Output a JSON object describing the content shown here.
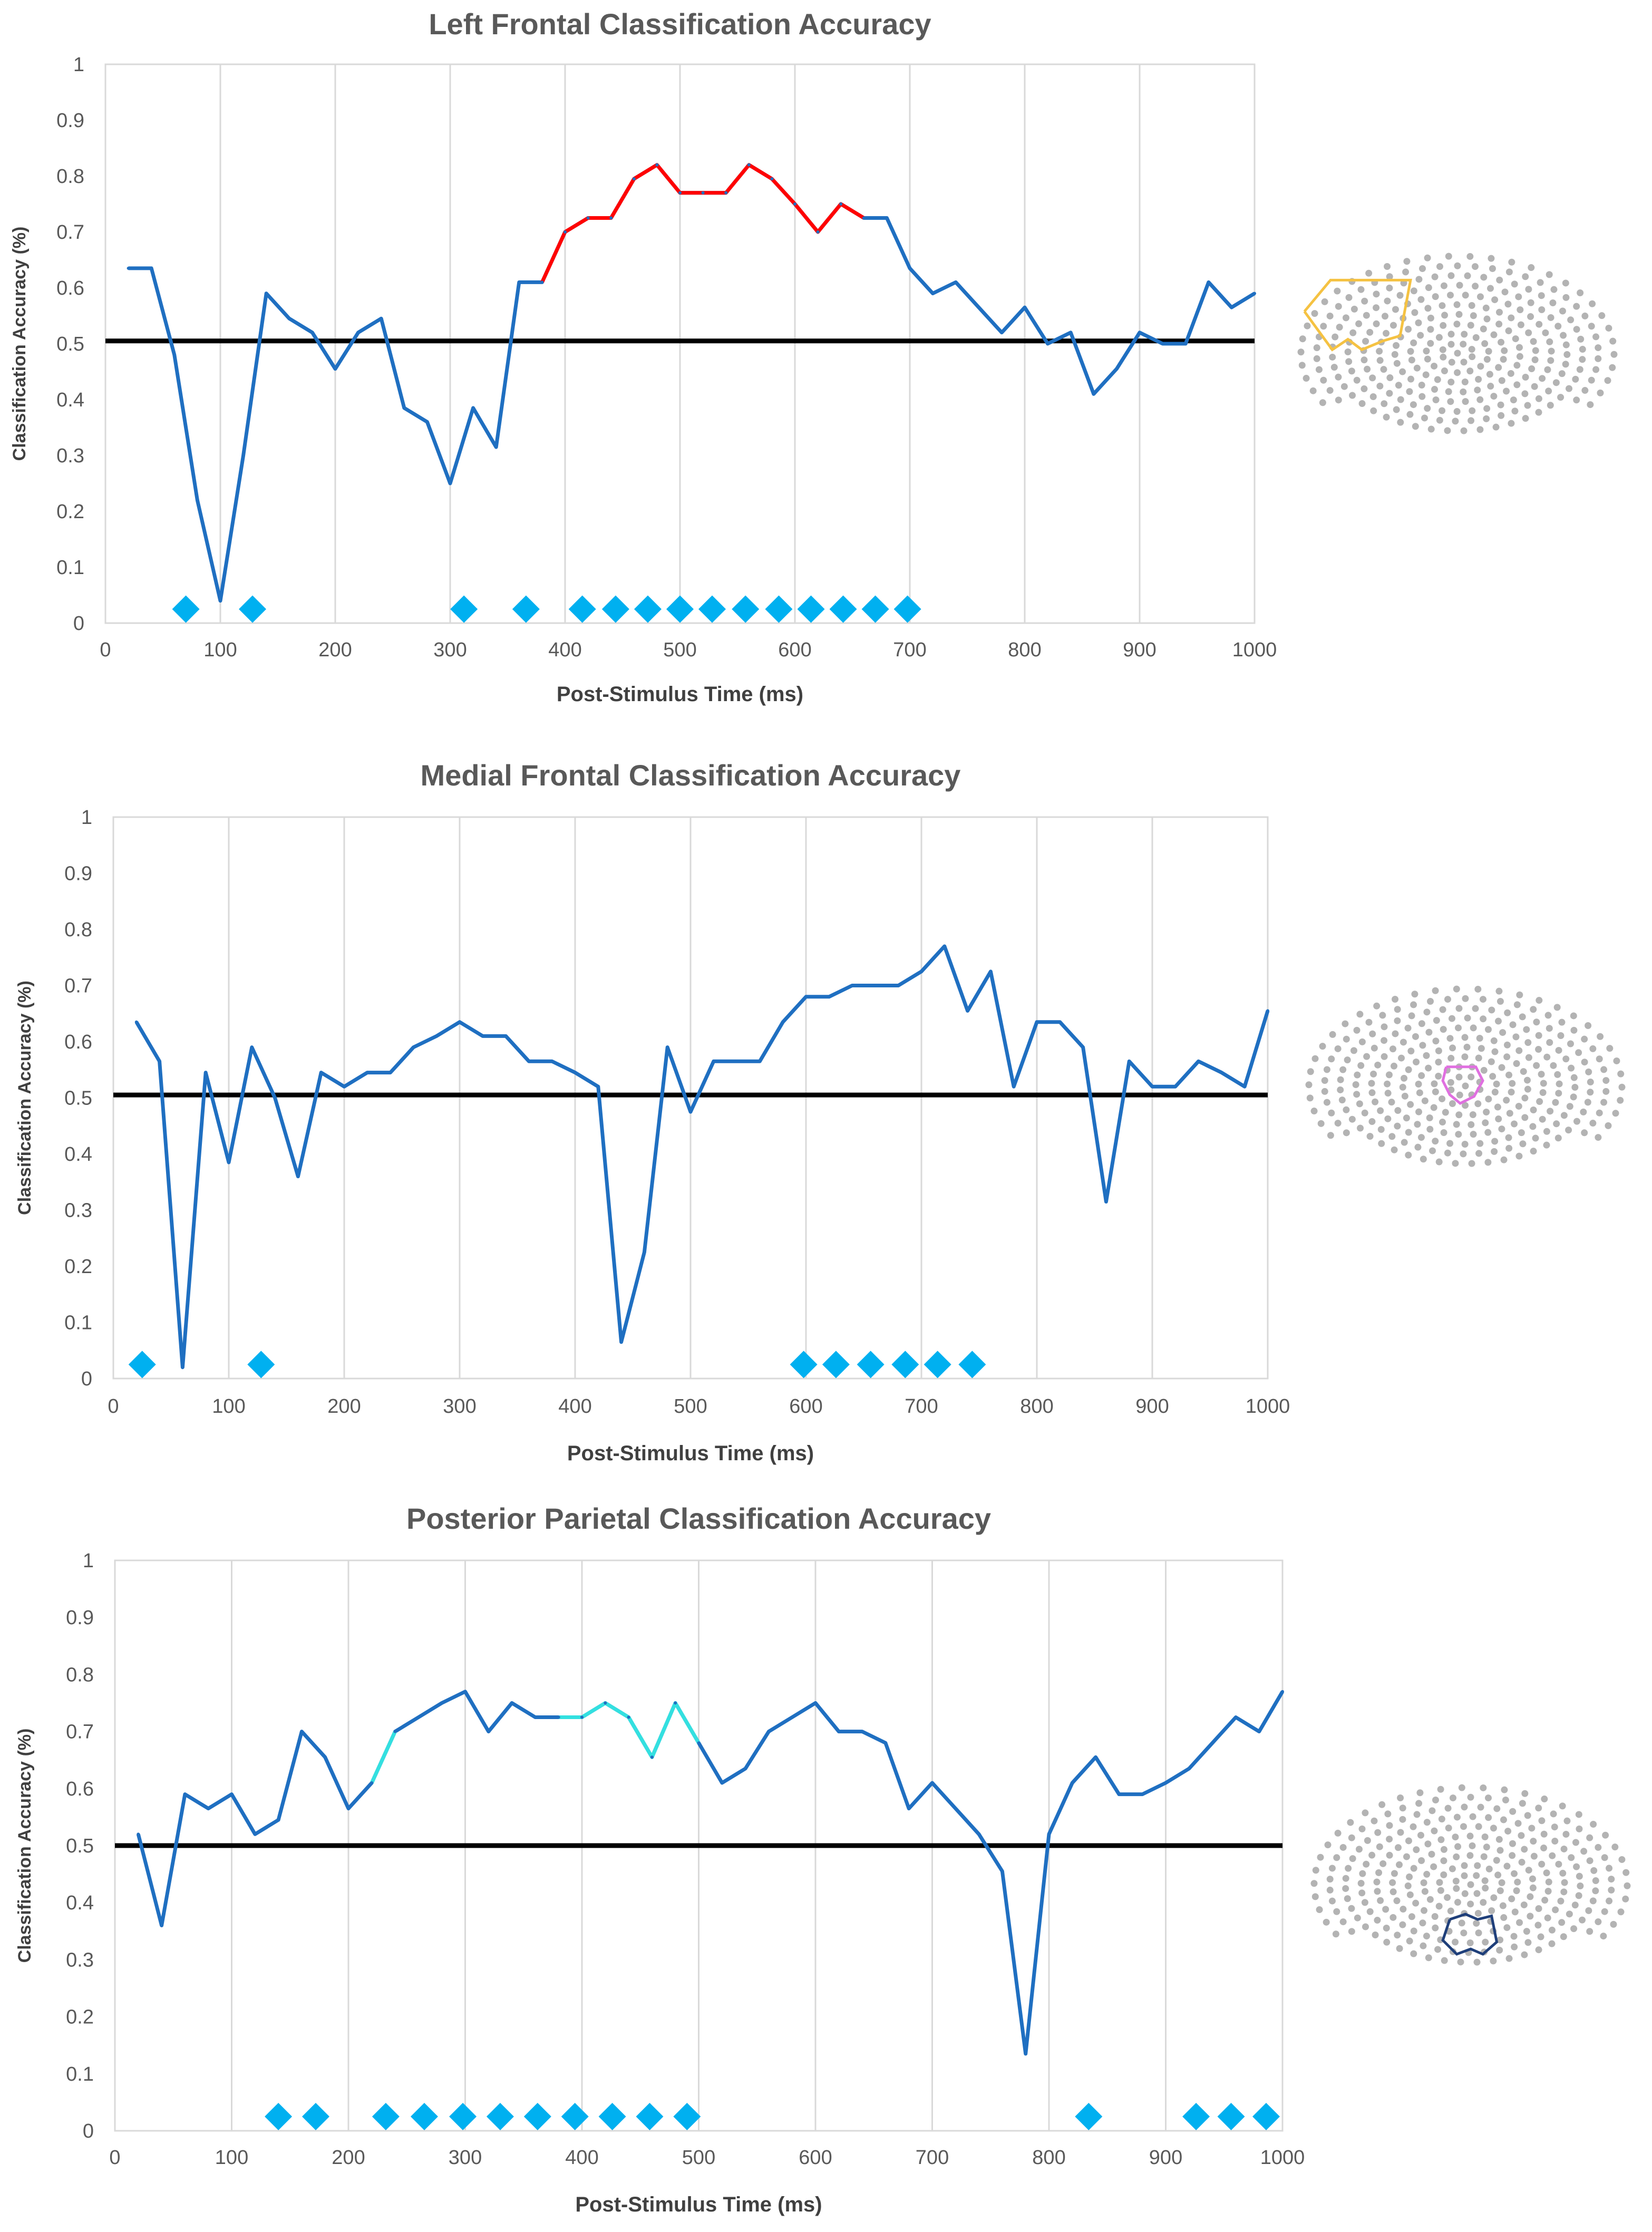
{
  "chart_data": [
    {
      "type": "line",
      "title": "Left Frontal Classification Accuracy",
      "xlabel": "Post-Stimulus Time (ms)",
      "ylabel": "Classification Accuracy (%)",
      "xlim": [
        0,
        1000
      ],
      "ylim": [
        0,
        1
      ],
      "x_ticks": [
        "0",
        "100",
        "200",
        "300",
        "400",
        "500",
        "600",
        "700",
        "800",
        "900",
        "1000"
      ],
      "y_ticks": [
        "0",
        "0.1",
        "0.2",
        "0.3",
        "0.4",
        "0.5",
        "0.6",
        "0.7",
        "0.8",
        "0.9",
        "1"
      ],
      "grid": "vertical",
      "chance_level": 0.505,
      "highlight_color": "#ff0000",
      "highlight_range": [
        380,
        660
      ],
      "line_color": "#1f6fc1",
      "series": [
        {
          "name": "Accuracy",
          "x": [
            20,
            40,
            60,
            80,
            100,
            120,
            140,
            160,
            180,
            200,
            220,
            240,
            260,
            280,
            300,
            320,
            340,
            360,
            380,
            400,
            420,
            440,
            460,
            480,
            500,
            520,
            540,
            560,
            580,
            600,
            620,
            640,
            660,
            680,
            700,
            720,
            740,
            760,
            780,
            800,
            820,
            840,
            860,
            880,
            900,
            920,
            940,
            960,
            980,
            1000
          ],
          "y": [
            0.635,
            0.635,
            0.48,
            0.22,
            0.04,
            0.3,
            0.59,
            0.545,
            0.52,
            0.455,
            0.52,
            0.545,
            0.385,
            0.36,
            0.25,
            0.385,
            0.315,
            0.61,
            0.61,
            0.7,
            0.725,
            0.725,
            0.795,
            0.82,
            0.77,
            0.77,
            0.77,
            0.82,
            0.795,
            0.75,
            0.7,
            0.75,
            0.725,
            0.725,
            0.635,
            0.59,
            0.61,
            0.565,
            0.52,
            0.565,
            0.5,
            0.52,
            0.41,
            0.455,
            0.52,
            0.5,
            0.5,
            0.61,
            0.565,
            0.59
          ]
        }
      ],
      "significance_markers": {
        "color": "#00b0f0",
        "x": [
          70,
          128,
          312,
          366,
          415,
          444,
          472,
          500,
          528,
          557,
          586,
          614,
          642,
          670,
          698
        ],
        "y": 0.025
      },
      "sensor_map": {
        "roi_color": "#f5c242",
        "region": "left-frontal"
      }
    },
    {
      "type": "line",
      "title": "Medial Frontal Classification Accuracy",
      "xlabel": "Post-Stimulus Time (ms)",
      "ylabel": "Classification Accuracy (%)",
      "xlim": [
        0,
        1000
      ],
      "ylim": [
        0,
        1
      ],
      "x_ticks": [
        "0",
        "100",
        "200",
        "300",
        "400",
        "500",
        "600",
        "700",
        "800",
        "900",
        "1000"
      ],
      "y_ticks": [
        "0",
        "0.1",
        "0.2",
        "0.3",
        "0.4",
        "0.5",
        "0.6",
        "0.7",
        "0.8",
        "0.9",
        "1"
      ],
      "grid": "vertical",
      "chance_level": 0.505,
      "line_color": "#1f6fc1",
      "series": [
        {
          "name": "Accuracy",
          "x": [
            20,
            40,
            60,
            80,
            100,
            120,
            140,
            160,
            180,
            200,
            220,
            240,
            260,
            280,
            300,
            320,
            340,
            360,
            380,
            400,
            420,
            440,
            460,
            480,
            500,
            520,
            540,
            560,
            580,
            600,
            620,
            640,
            660,
            680,
            700,
            720,
            740,
            760,
            780,
            800,
            820,
            840,
            860,
            880,
            900,
            920,
            940,
            960,
            980,
            1000
          ],
          "y": [
            0.635,
            0.565,
            0.02,
            0.545,
            0.385,
            0.59,
            0.5,
            0.36,
            0.545,
            0.52,
            0.545,
            0.545,
            0.59,
            0.61,
            0.635,
            0.61,
            0.61,
            0.565,
            0.565,
            0.545,
            0.52,
            0.065,
            0.225,
            0.59,
            0.475,
            0.565,
            0.565,
            0.565,
            0.635,
            0.68,
            0.68,
            0.7,
            0.7,
            0.7,
            0.725,
            0.77,
            0.655,
            0.725,
            0.52,
            0.635,
            0.635,
            0.59,
            0.315,
            0.565,
            0.52,
            0.52,
            0.565,
            0.545,
            0.52,
            0.655
          ]
        }
      ],
      "significance_markers": {
        "color": "#00b0f0",
        "x": [
          25,
          128,
          598,
          626,
          656,
          686,
          714,
          744
        ],
        "y": 0.025
      },
      "sensor_map": {
        "roi_color": "#e070e0",
        "region": "medial-frontal"
      }
    },
    {
      "type": "line",
      "title": "Posterior Parietal Classification Accuracy",
      "xlabel": "Post-Stimulus Time (ms)",
      "ylabel": "Classification Accuracy (%)",
      "xlim": [
        0,
        1000
      ],
      "ylim": [
        0,
        1
      ],
      "x_ticks": [
        "0",
        "100",
        "200",
        "300",
        "400",
        "500",
        "600",
        "700",
        "800",
        "900",
        "1000"
      ],
      "y_ticks": [
        "0",
        "0.1",
        "0.2",
        "0.3",
        "0.4",
        "0.5",
        "0.6",
        "0.7",
        "0.8",
        "0.9",
        "1"
      ],
      "grid": "vertical",
      "chance_level": 0.5,
      "highlight_color": "#33e0e0",
      "highlight_ranges": [
        [
          220,
          240
        ],
        [
          380,
          500
        ]
      ],
      "line_color": "#1f6fc1",
      "series": [
        {
          "name": "Accuracy",
          "x": [
            20,
            40,
            60,
            80,
            100,
            120,
            140,
            160,
            180,
            200,
            220,
            240,
            260,
            280,
            300,
            320,
            340,
            360,
            380,
            400,
            420,
            440,
            460,
            480,
            500,
            520,
            540,
            560,
            580,
            600,
            620,
            640,
            660,
            680,
            700,
            720,
            740,
            760,
            780,
            800,
            820,
            840,
            860,
            880,
            900,
            920,
            940,
            960,
            980,
            1000
          ],
          "y": [
            0.52,
            0.36,
            0.59,
            0.565,
            0.59,
            0.52,
            0.545,
            0.7,
            0.655,
            0.565,
            0.61,
            0.7,
            0.725,
            0.75,
            0.77,
            0.7,
            0.75,
            0.725,
            0.725,
            0.725,
            0.75,
            0.725,
            0.655,
            0.75,
            0.68,
            0.61,
            0.635,
            0.7,
            0.725,
            0.75,
            0.7,
            0.7,
            0.68,
            0.565,
            0.61,
            0.565,
            0.52,
            0.455,
            0.135,
            0.52,
            0.61,
            0.655,
            0.59,
            0.59,
            0.61,
            0.635,
            0.68,
            0.725,
            0.7,
            0.77
          ]
        }
      ],
      "significance_markers": {
        "color": "#00b0f0",
        "x": [
          140,
          172,
          232,
          265,
          298,
          330,
          362,
          394,
          426,
          458,
          490,
          834,
          926,
          956,
          986
        ],
        "y": 0.025
      },
      "sensor_map": {
        "roi_color": "#1f3f7a",
        "region": "posterior-parietal"
      }
    }
  ]
}
